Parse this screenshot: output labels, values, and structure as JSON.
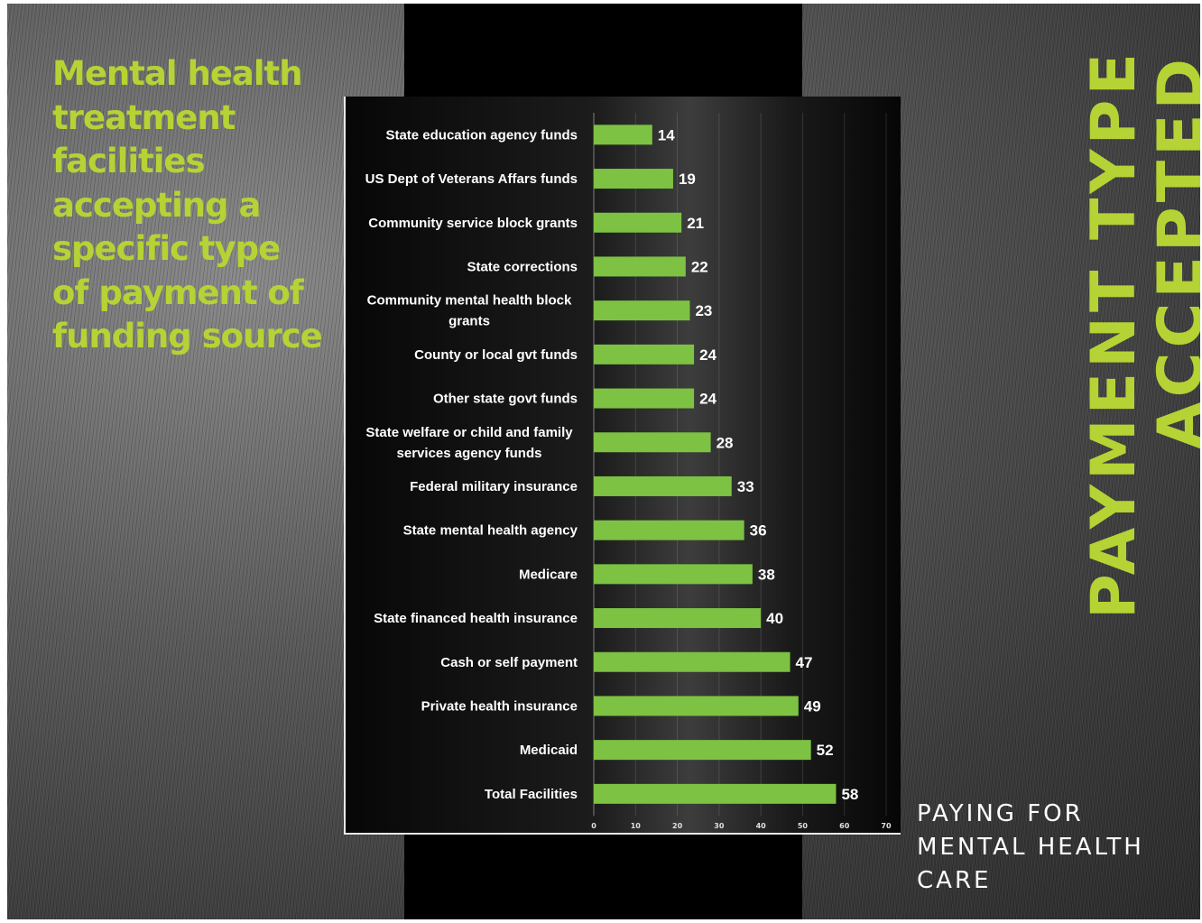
{
  "left_title": "Mental health treatment facilities accepting a specific type of payment of funding source",
  "vertical_title": {
    "line1": "PAYMENT TYPE",
    "line2": "ACCEPTED"
  },
  "bottom_caption": {
    "line1": "PAYING FOR",
    "line2": "MENTAL HEALTH",
    "line3": "CARE"
  },
  "colors": {
    "accent": "#b5d334",
    "bar": "#7dc242",
    "panel": "#000000"
  },
  "chart_data": {
    "type": "bar",
    "orientation": "horizontal",
    "categories": [
      "State education agency funds",
      "US Dept of Veterans Affars funds",
      "Community service block grants",
      "State corrections",
      "Community mental health block grants",
      "County or local gvt funds",
      "Other state govt funds",
      "State welfare or child and family services agency funds",
      "Federal military insurance",
      "State mental health agency",
      "Medicare",
      "State financed health insurance",
      "Cash or self payment",
      "Private health insurance",
      "Medicaid",
      "Total Facilities"
    ],
    "category_lines": [
      [
        "State education agency funds"
      ],
      [
        "US Dept of Veterans Affars funds"
      ],
      [
        "Community service block grants"
      ],
      [
        "State corrections"
      ],
      [
        "Community mental health block",
        "grants"
      ],
      [
        "County or local gvt funds"
      ],
      [
        "Other state govt funds"
      ],
      [
        "State welfare or child and family",
        "services agency funds"
      ],
      [
        "Federal military insurance"
      ],
      [
        "State mental health agency"
      ],
      [
        "Medicare"
      ],
      [
        "State financed health insurance"
      ],
      [
        "Cash or self payment"
      ],
      [
        "Private health insurance"
      ],
      [
        "Medicaid"
      ],
      [
        "Total Facilities"
      ]
    ],
    "values": [
      14,
      19,
      21,
      22,
      23,
      24,
      24,
      28,
      33,
      36,
      38,
      40,
      47,
      49,
      52,
      58
    ],
    "xlim": [
      0,
      70
    ],
    "xticks": [
      0,
      10,
      20,
      30,
      40,
      50,
      60,
      70
    ],
    "grid": true,
    "data_labels": true
  }
}
